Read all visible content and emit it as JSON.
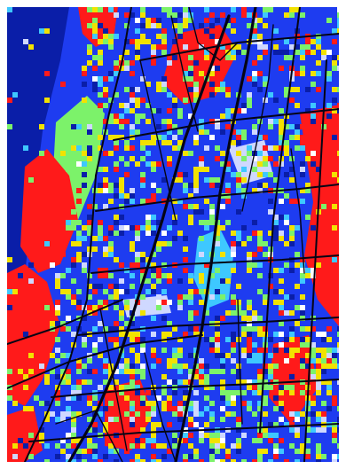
{
  "map": {
    "colors": {
      "background": "#1e3cf0",
      "dark_blue": "#0a1ea8",
      "red": "#ff1a1a",
      "yellow": "#f2e200",
      "green": "#7cf26a",
      "cyan": "#3ec8ff",
      "light": "#cfd8ff",
      "road": "#050515",
      "white": "#ffffff"
    }
  }
}
